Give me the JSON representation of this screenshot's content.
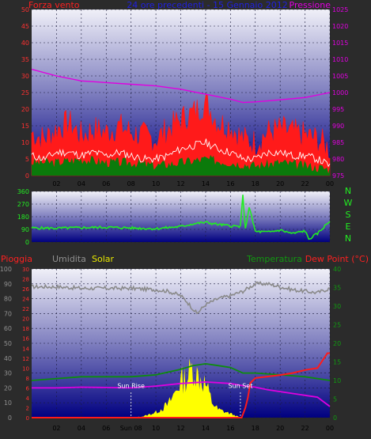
{
  "chart_data": [
    {
      "type": "line",
      "panel": "wind-pressure",
      "left_title": "Forza vento",
      "center_title": "24 ore precedenti - 15 Gennaio 2012",
      "right_title": "Pressione",
      "x_ticks": [
        "02",
        "04",
        "06",
        "08",
        "10",
        "12",
        "14",
        "16",
        "18",
        "20",
        "22",
        "00"
      ],
      "left_axis": {
        "min": 0,
        "max": 50,
        "ticks": [
          0,
          5,
          10,
          15,
          20,
          25,
          30,
          35,
          40,
          45,
          50
        ]
      },
      "right_axis": {
        "min": 975,
        "max": 1025,
        "ticks": [
          975,
          980,
          985,
          990,
          995,
          1000,
          1005,
          1010,
          1015,
          1020,
          1025
        ]
      },
      "series": [
        {
          "name": "Pressione",
          "axis": "right",
          "color": "#e000e0",
          "x": [
            0,
            2,
            4,
            6,
            8,
            10,
            12,
            14,
            16,
            17,
            18,
            20,
            22,
            24
          ],
          "y": [
            1007,
            1005,
            1003.5,
            1003,
            1002.5,
            1002,
            1001,
            999.5,
            998,
            997,
            997.2,
            997.8,
            998.5,
            1000
          ]
        },
        {
          "name": "gust",
          "color": "#ff1a1a",
          "noise": 1,
          "x": [
            0,
            1,
            2,
            3,
            4,
            5,
            6,
            7,
            8,
            9,
            10,
            11,
            12,
            13,
            14,
            15,
            16,
            17,
            18,
            19,
            20,
            21,
            22,
            23,
            24
          ],
          "y": [
            12,
            10,
            13,
            15,
            11,
            13,
            12,
            14,
            12,
            11,
            10,
            13,
            16,
            18,
            21,
            15,
            14,
            10,
            9,
            12,
            13,
            12,
            11,
            10,
            7
          ]
        },
        {
          "name": "mean",
          "color": "#ffffff",
          "x": [
            0,
            1,
            2,
            3,
            4,
            5,
            6,
            7,
            8,
            9,
            10,
            11,
            12,
            13,
            14,
            15,
            16,
            17,
            18,
            19,
            20,
            21,
            22,
            23,
            24
          ],
          "y": [
            6,
            5,
            7,
            7,
            6,
            7,
            6,
            7,
            6,
            5,
            5,
            6,
            8,
            9,
            10,
            8,
            7,
            5,
            5,
            7,
            7,
            6,
            6,
            5,
            3
          ]
        },
        {
          "name": "low",
          "color": "#0b7a0b",
          "x": [
            0,
            2,
            4,
            6,
            8,
            10,
            12,
            14,
            16,
            18,
            20,
            22,
            24
          ],
          "y": [
            4,
            4,
            5,
            4,
            4,
            3,
            4,
            5,
            4,
            3,
            4,
            3,
            2
          ]
        }
      ]
    },
    {
      "type": "line",
      "panel": "wind-direction",
      "y_ticks": [
        0,
        90,
        180,
        270,
        360
      ],
      "ylim": [
        0,
        360
      ],
      "right_labels": [
        "N",
        "W",
        "S",
        "E",
        "N"
      ],
      "series": [
        {
          "name": "direzione",
          "color": "#22ee22",
          "x": [
            0,
            2,
            4,
            6,
            8,
            10,
            12,
            13,
            14,
            15,
            16,
            16.8,
            17,
            17.2,
            17.5,
            18,
            19,
            20,
            21,
            22,
            22.3,
            23,
            24
          ],
          "y": [
            100,
            98,
            102,
            105,
            100,
            95,
            110,
            130,
            140,
            125,
            115,
            110,
            330,
            90,
            250,
            75,
            70,
            85,
            60,
            80,
            20,
            60,
            150
          ]
        }
      ]
    },
    {
      "type": "line",
      "panel": "rain-humidity",
      "titles": {
        "pioggia": "Pioggia",
        "umidita": "Umidita",
        "solar": "Solar",
        "temperatura": "Temperatura",
        "dewpoint": "Dew Point (°C)"
      },
      "x_ticks": [
        "02",
        "04",
        "06",
        "Sun 08",
        "10",
        "12",
        "14",
        "16",
        "18",
        "20",
        "22",
        "00"
      ],
      "humidity_axis": {
        "min": 0,
        "max": 100,
        "ticks": [
          0,
          10,
          20,
          30,
          40,
          50,
          60,
          70,
          80,
          90,
          100
        ]
      },
      "rain_axis": {
        "min": 0,
        "max": 30,
        "ticks": [
          0,
          2,
          4,
          6,
          8,
          10,
          12,
          14,
          16,
          18,
          20,
          22,
          24,
          26,
          28,
          30
        ]
      },
      "temp_axis": {
        "min": 0,
        "max": 40,
        "ticks": [
          0,
          5,
          10,
          15,
          20,
          25,
          30,
          35,
          40
        ]
      },
      "annotations": [
        {
          "label": "Sun Rise",
          "x": 8.0
        },
        {
          "label": "Sun Set",
          "x": 16.8
        }
      ],
      "series": [
        {
          "name": "Umidita",
          "axis": "humidity",
          "color": "#8a8a8a",
          "x": [
            0,
            2,
            4,
            6,
            8,
            10,
            11,
            12,
            12.5,
            13,
            13.3,
            14,
            15,
            16,
            17,
            18,
            19,
            20,
            21,
            22,
            23,
            24
          ],
          "y": [
            88,
            88,
            87,
            87,
            87,
            86,
            85,
            82,
            78,
            73,
            70,
            76,
            80,
            82,
            85,
            90,
            90,
            88,
            86,
            85,
            84,
            87
          ]
        },
        {
          "name": "Temperatura",
          "axis": "temp",
          "color": "#0e8c0e",
          "x": [
            0,
            2,
            4,
            6,
            8,
            10,
            12,
            13,
            14,
            15,
            16,
            17,
            18,
            20,
            22,
            24
          ],
          "y": [
            10,
            10.5,
            11,
            11,
            11,
            11.5,
            13,
            14,
            14.5,
            14,
            13.5,
            12,
            12,
            11.5,
            11,
            10
          ]
        },
        {
          "name": "Dew Point",
          "axis": "temp",
          "color": "#e000e0",
          "x": [
            0,
            2,
            4,
            6,
            8,
            10,
            12,
            14,
            16,
            17,
            18,
            19,
            20,
            22,
            23,
            24
          ],
          "y": [
            8,
            8,
            8.2,
            8.1,
            8,
            8.5,
            9.2,
            9.6,
            9.2,
            8.6,
            8.2,
            7.5,
            7,
            6,
            5.5,
            3
          ]
        },
        {
          "name": "Pioggia",
          "axis": "rain",
          "color": "#ff1a1a",
          "x": [
            0,
            16.9,
            17.2,
            17.4,
            17.6,
            18,
            20,
            21,
            22,
            23,
            23.8,
            24
          ],
          "y": [
            0,
            0,
            2,
            4,
            7,
            8,
            8.6,
            9,
            9.6,
            10,
            13,
            13
          ]
        },
        {
          "name": "Solar",
          "axis": "humidity",
          "color": "#ffff00",
          "x": [
            0,
            8,
            9,
            10,
            11,
            11.5,
            12,
            12.5,
            12.8,
            13,
            13.3,
            13.6,
            14,
            14.5,
            15,
            16,
            16.8,
            24
          ],
          "y": [
            0,
            0,
            1,
            4,
            10,
            18,
            28,
            30,
            35,
            38,
            32,
            30,
            25,
            12,
            6,
            3,
            0,
            0
          ]
        }
      ]
    }
  ]
}
